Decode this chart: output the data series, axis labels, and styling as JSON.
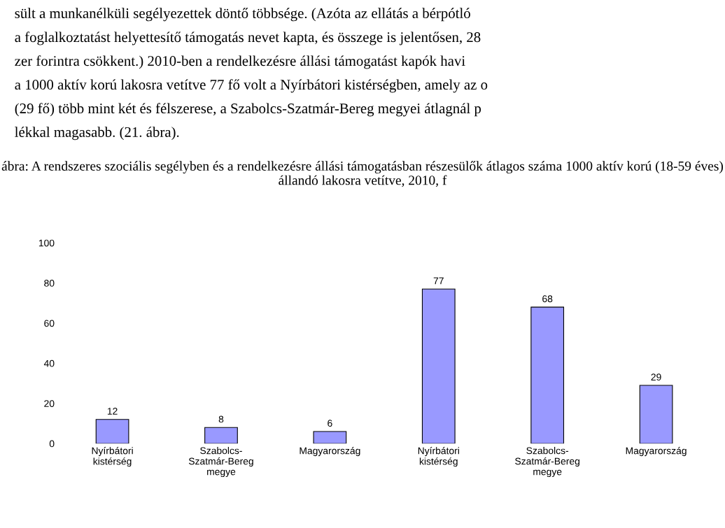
{
  "chart_data": {
    "type": "bar",
    "title": "ábra: A rendszeres szociális segélyben és a rendelkezésre állási támogatásban részesülők átlagos száma 1000 aktív korú (18-59 éves) állandó lakosra vetítve, 2010, f",
    "annotations": [
      "sült a munkanélküli segélyezettek döntő többsége. (Azóta az ellátás a bérpótló",
      "a foglalkoztatást helyettesítő támogatás nevet kapta, és összege is jelentősen, 28",
      "zer forintra csökkent.) 2010-ben a rendelkezésre állási támogatást kapók havi",
      "a 1000 aktív korú lakosra vetítve 77 fő volt a Nyírbátori kistérségben, amely az o",
      "(29 fő) több mint két és félszerese, a Szabolcs-Szatmár-Bereg megyei átlagnál p",
      "lékkal magasabb. (21. ábra)."
    ],
    "categories": [
      "Nyírbátori kistérség",
      "Szabolcs-Szatmár-Bereg megye",
      "Magyarország",
      "Nyírbátori kistérség",
      "Szabolcs-Szatmár-Bereg megye",
      "Magyarország"
    ],
    "values": [
      12,
      8,
      6,
      77,
      68,
      29
    ],
    "color": "#9999ff",
    "ylim": [
      0,
      100
    ],
    "yticks": [
      0,
      20,
      40,
      60,
      80,
      100
    ],
    "data_labels": true
  }
}
